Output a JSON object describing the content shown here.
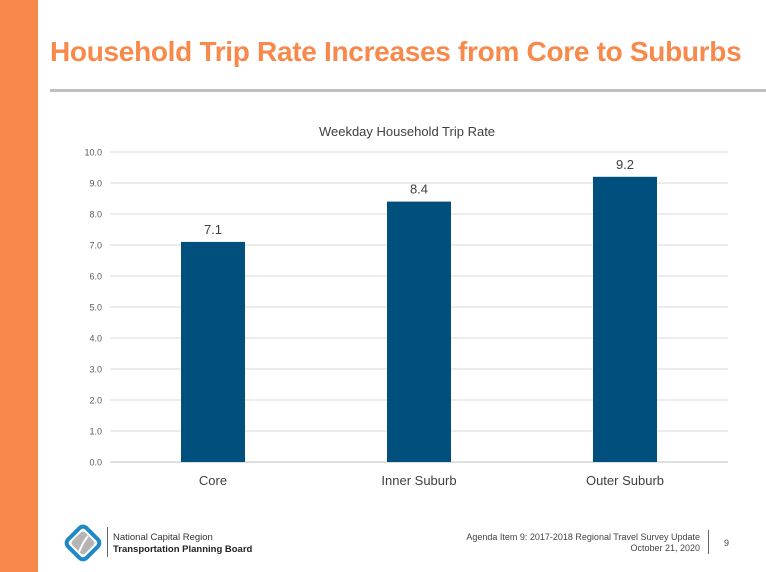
{
  "slide": {
    "title": "Household Trip Rate Increases from Core to Suburbs",
    "page_number": "9"
  },
  "footer": {
    "org_line1": "National Capital Region",
    "org_line2": "Transportation Planning Board",
    "agenda": "Agenda Item 9: 2017-2018 Regional Travel Survey Update",
    "date": "October 21, 2020"
  },
  "colors": {
    "accent": "#F7894A",
    "bar": "#004F7C"
  },
  "chart_data": {
    "type": "bar",
    "title": "Weekday Household Trip Rate",
    "categories": [
      "Core",
      "Inner Suburb",
      "Outer Suburb"
    ],
    "values": [
      7.1,
      8.4,
      9.2
    ],
    "ylim": [
      0,
      10
    ],
    "yticks": [
      "0.0",
      "1.0",
      "2.0",
      "3.0",
      "4.0",
      "5.0",
      "6.0",
      "7.0",
      "8.0",
      "9.0",
      "10.0"
    ],
    "grid": true,
    "xlabel": "",
    "ylabel": ""
  }
}
